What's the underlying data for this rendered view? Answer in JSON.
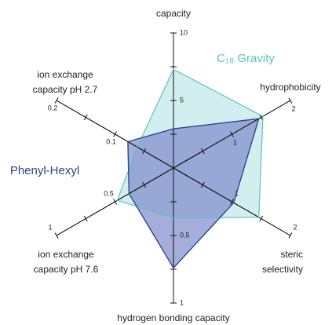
{
  "chart_data": {
    "type": "radar",
    "axes": [
      {
        "label": [
          "capacity"
        ],
        "lim": [
          0,
          10
        ],
        "ticks": [
          5,
          10
        ],
        "minor_ticks": [
          2.5,
          7.5
        ]
      },
      {
        "label": [
          "hydrophobicity"
        ],
        "lim": [
          0,
          2
        ],
        "ticks": [
          1,
          2
        ],
        "minor_ticks": [
          0.5,
          1.5
        ]
      },
      {
        "label": [
          "steric",
          "selectivity"
        ],
        "lim": [
          0,
          2
        ],
        "ticks": [
          1,
          2
        ],
        "minor_ticks": [
          0.5,
          1.5
        ]
      },
      {
        "label": [
          "hydrogen bonding capacity"
        ],
        "lim": [
          0,
          1
        ],
        "ticks": [
          0.5,
          1
        ],
        "minor_ticks": [
          0.25,
          0.75
        ]
      },
      {
        "label": [
          "ion exchange",
          "capacity pH 7.6"
        ],
        "lim": [
          0,
          1
        ],
        "ticks": [
          0.5,
          1
        ],
        "minor_ticks": [
          0.25,
          0.75
        ]
      },
      {
        "label": [
          "ion exchange",
          "capacity pH 2.7"
        ],
        "lim": [
          0,
          0.2
        ],
        "ticks": [
          0.1,
          0.2
        ],
        "minor_ticks": [
          0.05,
          0.15
        ]
      }
    ],
    "series": [
      {
        "name": "C₁₈ Gravity",
        "color": "#5fc1c0",
        "fill": "#d3eeee",
        "values": [
          7.3,
          1.53,
          1.46,
          0.37,
          0.48,
          0.062
        ]
      },
      {
        "name": "Phenyl-Hexyl",
        "color": "#27478f",
        "fill": "#7f8acc",
        "values": [
          2.9,
          1.46,
          1.03,
          0.74,
          0.38,
          0.078
        ]
      }
    ]
  }
}
